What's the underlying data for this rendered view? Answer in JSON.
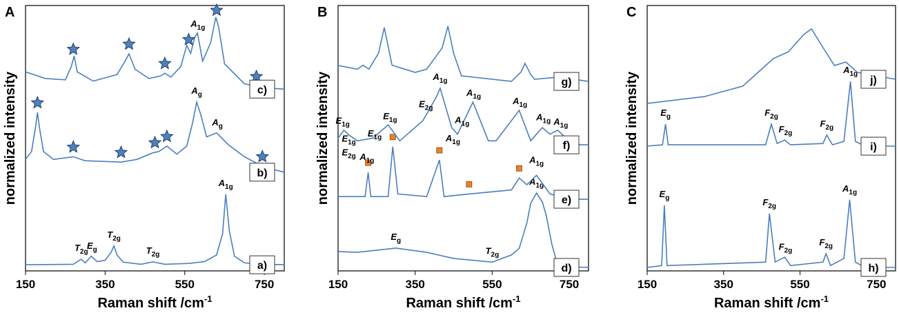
{
  "chart_data": [
    {
      "type": "line",
      "panel_label": "A",
      "xlabel": {
        "text": "Raman shift /cm",
        "sup": "-1"
      },
      "ylabel": "normalized intensity",
      "xlim": [
        150,
        800
      ],
      "xticks": [
        150,
        350,
        550,
        750
      ],
      "ylim": [
        0,
        10
      ],
      "color": "#4a7ebb",
      "marker": "star",
      "marker_color": "#4f81bd",
      "series": [
        {
          "name": "a)",
          "x": [
            150,
            270,
            290,
            300,
            315,
            330,
            350,
            365,
            372,
            380,
            395,
            440,
            470,
            500,
            560,
            600,
            630,
            645,
            653,
            662,
            675,
            700,
            750,
            800
          ],
          "values": [
            0.23,
            0.25,
            0.44,
            0.3,
            0.55,
            0.35,
            0.4,
            0.7,
            0.94,
            0.6,
            0.33,
            0.25,
            0.34,
            0.25,
            0.28,
            0.35,
            0.6,
            1.4,
            2.88,
            1.5,
            0.55,
            0.3,
            0.25,
            0.23
          ],
          "markers": [],
          "annotations": [
            {
              "x": 290,
              "label": "T",
              "sub": "2g"
            },
            {
              "x": 317,
              "label": "E",
              "sub": "g"
            },
            {
              "x": 372,
              "label": "T",
              "sub": "2g"
            },
            {
              "x": 470,
              "label": "T",
              "sub": "2g"
            },
            {
              "x": 653,
              "label": "A",
              "sub": "1g"
            }
          ]
        },
        {
          "name": "b)",
          "x": [
            150,
            165,
            175,
            180,
            185,
            195,
            220,
            270,
            300,
            390,
            430,
            470,
            485,
            505,
            530,
            555,
            570,
            580,
            590,
            605,
            630,
            660,
            700,
            750,
            800
          ],
          "values": [
            4.2,
            4.5,
            5.4,
            5.97,
            5.4,
            4.5,
            4.2,
            4.3,
            4.15,
            4.1,
            4.2,
            4.45,
            4.5,
            4.7,
            4.4,
            4.7,
            5.6,
            6.36,
            5.9,
            5.05,
            5.2,
            4.75,
            4.3,
            3.9,
            3.72
          ],
          "markers": [
            180,
            270,
            390,
            475,
            505,
            745
          ],
          "annotations": [
            {
              "x": 580,
              "label": "A",
              "sub": "g"
            },
            {
              "x": 632,
              "label": "A",
              "sub": "g"
            }
          ]
        },
        {
          "name": "c)",
          "x": [
            150,
            200,
            250,
            265,
            272,
            280,
            320,
            380,
            400,
            410,
            425,
            460,
            490,
            500,
            515,
            540,
            555,
            565,
            575,
            582,
            595,
            615,
            628,
            635,
            650,
            700,
            750,
            800
          ],
          "values": [
            7.5,
            7.25,
            7.2,
            7.7,
            8.1,
            7.5,
            7.15,
            7.4,
            7.9,
            8.18,
            7.6,
            7.25,
            7.35,
            7.45,
            7.3,
            7.7,
            8.5,
            8.2,
            8.8,
            8.96,
            7.9,
            8.6,
            9.56,
            9.2,
            7.8,
            7.05,
            6.9,
            6.85
          ],
          "markers": [
            270,
            410,
            500,
            560,
            630,
            730
          ],
          "annotations": [
            {
              "x": 583,
              "label": "A",
              "sub": "1g"
            }
          ]
        }
      ]
    },
    {
      "type": "line",
      "panel_label": "B",
      "xlabel": {
        "text": "Raman shift /cm",
        "sup": "-1"
      },
      "ylabel": "normalized intensity",
      "xlim": [
        150,
        800
      ],
      "xticks": [
        150,
        350,
        550,
        750
      ],
      "ylim": [
        0,
        10
      ],
      "color": "#4a7ebb",
      "marker": "square",
      "marker_color": "#e8822a",
      "series": [
        {
          "name": "d)",
          "x": [
            150,
            200,
            300,
            380,
            450,
            550,
            600,
            620,
            640,
            650,
            665,
            680,
            690,
            705,
            720,
            760,
            800
          ],
          "values": [
            0.73,
            0.7,
            0.86,
            0.7,
            0.47,
            0.33,
            0.6,
            0.85,
            1.8,
            2.55,
            2.93,
            2.6,
            2.1,
            1.0,
            0.2,
            0.15,
            0.13
          ],
          "markers": [],
          "annotations": [
            {
              "x": 300,
              "label": "E",
              "sub": "g"
            },
            {
              "x": 550,
              "label": "T",
              "sub": "2g"
            },
            {
              "x": 665,
              "label": "A",
              "sub": "1g"
            }
          ]
        },
        {
          "name": "e)",
          "x": [
            150,
            220,
            228,
            235,
            280,
            292,
            305,
            380,
            413,
            425,
            490,
            600,
            620,
            640,
            665,
            700,
            750,
            800
          ],
          "values": [
            2.8,
            2.8,
            3.71,
            2.8,
            2.8,
            4.68,
            2.9,
            2.8,
            4.18,
            2.8,
            2.9,
            3.05,
            3.5,
            3.25,
            3.6,
            2.9,
            2.7,
            2.7
          ],
          "markers": [
            228,
            292,
            413,
            490,
            620
          ],
          "annotations": [
            {
              "x": 665,
              "label": "A",
              "sub": "1g"
            }
          ]
        },
        {
          "name": "f)",
          "x": [
            150,
            165,
            180,
            200,
            240,
            280,
            310,
            370,
            405,
            415,
            445,
            460,
            500,
            540,
            560,
            620,
            650,
            680,
            700,
            720,
            760,
            800
          ],
          "values": [
            5.0,
            5.3,
            5.1,
            4.9,
            5.0,
            5.5,
            4.9,
            5.66,
            6.55,
            6.88,
            5.4,
            5.15,
            6.36,
            4.9,
            4.9,
            6.05,
            4.9,
            5.4,
            5.15,
            5.3,
            4.75,
            4.75
          ],
          "markers": [],
          "annotations": [
            {
              "x": 162,
              "label": "E",
              "sub": "1g"
            },
            {
              "x": 178,
              "label": "E",
              "sub": "1g"
            },
            {
              "x": 178,
              "label": "E",
              "sub": "2g"
            },
            {
              "x": 225,
              "label": "A",
              "sub": "1g"
            },
            {
              "x": 245,
              "label": "E",
              "sub": "1g"
            },
            {
              "x": 285,
              "label": "E",
              "sub": "1g"
            },
            {
              "x": 378,
              "label": "E",
              "sub": "2g"
            },
            {
              "x": 415,
              "label": "A",
              "sub": "1g"
            },
            {
              "x": 448,
              "label": "A",
              "sub": "1g"
            },
            {
              "x": 472,
              "label": "A",
              "sub": "1g"
            },
            {
              "x": 502,
              "label": "A",
              "sub": "1g"
            },
            {
              "x": 622,
              "label": "A",
              "sub": "1g"
            },
            {
              "x": 683,
              "label": "A",
              "sub": "1g"
            },
            {
              "x": 728,
              "label": "A",
              "sub": "1g"
            }
          ]
        },
        {
          "name": "g)",
          "x": [
            150,
            200,
            215,
            230,
            255,
            270,
            290,
            350,
            380,
            420,
            435,
            450,
            470,
            600,
            625,
            635,
            650,
            660,
            720,
            800
          ],
          "values": [
            7.74,
            7.6,
            7.75,
            7.6,
            8.2,
            9.17,
            7.75,
            7.48,
            7.6,
            8.4,
            9.22,
            8.2,
            7.35,
            7.14,
            7.5,
            7.82,
            7.4,
            7.22,
            7.3,
            7.14
          ],
          "markers": [],
          "annotations": []
        }
      ]
    },
    {
      "type": "line",
      "panel_label": "C",
      "xlabel": {
        "text": "Raman shift /cm",
        "sup": "-1"
      },
      "ylabel": "normalized intensity",
      "xlim": [
        150,
        800
      ],
      "xticks": [
        150,
        350,
        550,
        750
      ],
      "ylim": [
        0,
        10
      ],
      "color": "#4a7ebb",
      "marker": "none",
      "marker_color": "#4f81bd",
      "series": [
        {
          "name": "h)",
          "x": [
            150,
            188,
            195,
            202,
            460,
            470,
            485,
            510,
            525,
            610,
            618,
            630,
            665,
            680,
            695,
            720,
            800
          ],
          "values": [
            0.13,
            0.2,
            2.47,
            0.2,
            0.33,
            2.16,
            0.33,
            0.52,
            0.2,
            0.33,
            0.65,
            0.2,
            0.47,
            2.68,
            0.33,
            0.13,
            0.13
          ],
          "markers": [],
          "annotations": [
            {
              "x": 195,
              "label": "E",
              "sub": "g"
            },
            {
              "x": 470,
              "label": "F",
              "sub": "2g"
            },
            {
              "x": 512,
              "label": "F",
              "sub": "2g"
            },
            {
              "x": 618,
              "label": "F",
              "sub": "2g"
            },
            {
              "x": 680,
              "label": "A",
              "sub": "1g"
            }
          ]
        },
        {
          "name": "i)",
          "x": [
            150,
            190,
            198,
            205,
            460,
            475,
            490,
            510,
            525,
            610,
            620,
            635,
            665,
            682,
            695,
            720,
            800
          ],
          "values": [
            4.7,
            4.75,
            5.53,
            4.75,
            4.75,
            5.53,
            4.8,
            4.93,
            4.75,
            4.8,
            5.12,
            4.75,
            4.88,
            7.14,
            4.88,
            4.7,
            4.7
          ],
          "markers": [],
          "annotations": [
            {
              "x": 198,
              "label": "E",
              "sub": "g"
            },
            {
              "x": 475,
              "label": "F",
              "sub": "2g"
            },
            {
              "x": 512,
              "label": "F",
              "sub": "2g"
            },
            {
              "x": 620,
              "label": "F",
              "sub": "2g"
            },
            {
              "x": 682,
              "label": "A",
              "sub": "1g"
            }
          ]
        },
        {
          "name": "j)",
          "x": [
            150,
            300,
            400,
            450,
            480,
            520,
            560,
            580,
            600,
            640,
            670,
            700,
            750,
            800
          ],
          "values": [
            6.31,
            6.57,
            6.96,
            7.61,
            8.0,
            8.26,
            8.91,
            9.12,
            8.65,
            7.74,
            7.87,
            7.48,
            7.35,
            7.22
          ],
          "markers": [],
          "annotations": []
        }
      ]
    }
  ]
}
